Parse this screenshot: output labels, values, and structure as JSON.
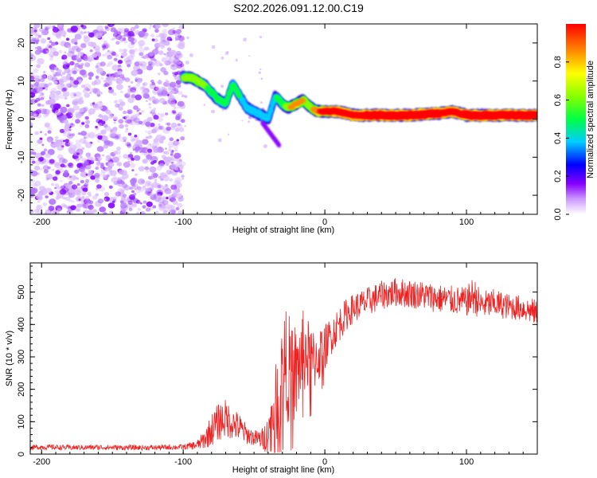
{
  "title": "S202.2026.091.12.00.C19",
  "chart_data": [
    {
      "type": "heatmap",
      "xlabel": "Height of straight line (km)",
      "ylabel": "Frequency (Hz)",
      "xlim": [
        -208,
        150
      ],
      "ylim": [
        -25,
        25
      ],
      "x_ticks": [
        -200,
        -100,
        0,
        100
      ],
      "y_ticks": [
        -20,
        -10,
        0,
        10,
        20
      ],
      "noise_region_x": [
        -208,
        -100
      ],
      "ridge": {
        "x": [
          -100,
          -95,
          -90,
          -85,
          -80,
          -75,
          -70,
          -65,
          -60,
          -55,
          -50,
          -45,
          -40,
          -35,
          -30,
          -25,
          -20,
          -15,
          -10,
          -5,
          0,
          10,
          20,
          40,
          60,
          80,
          90,
          100,
          120,
          150
        ],
        "freq": [
          11,
          11,
          10,
          9,
          7,
          5,
          4,
          9,
          6,
          3,
          2,
          1,
          0,
          6,
          4,
          3,
          4,
          5,
          3,
          2,
          2,
          2,
          1,
          1,
          1,
          1.5,
          2,
          1,
          1,
          1
        ],
        "amplitude": [
          0.45,
          0.5,
          0.5,
          0.45,
          0.4,
          0.35,
          0.35,
          0.35,
          0.35,
          0.3,
          0.3,
          0.35,
          0.3,
          0.35,
          0.4,
          0.55,
          0.6,
          0.55,
          0.5,
          0.65,
          0.8,
          0.85,
          0.85,
          0.95,
          0.95,
          0.9,
          0.85,
          0.9,
          0.9,
          0.9
        ]
      },
      "colorbar": {
        "label": "Normalized spectral amplitude",
        "ticks": [
          "0.0",
          "0.2",
          "0.4",
          "0.6",
          "0.8"
        ],
        "tick_values": [
          0.0,
          0.2,
          0.4,
          0.6,
          0.8
        ],
        "range": [
          0,
          1
        ]
      }
    },
    {
      "type": "line",
      "xlabel": "Height of straight line (km)",
      "ylabel": "SNR (10 * v/v)",
      "xlim": [
        -208,
        150
      ],
      "ylim": [
        0,
        590
      ],
      "x_ticks": [
        -200,
        -100,
        0,
        100
      ],
      "y_ticks": [
        0,
        100,
        200,
        300,
        400,
        500
      ],
      "color": "#ee2222",
      "series": [
        {
          "name": "SNR",
          "x": [
            -208,
            -200,
            -180,
            -160,
            -140,
            -120,
            -100,
            -90,
            -85,
            -80,
            -75,
            -70,
            -65,
            -60,
            -55,
            -50,
            -45,
            -40,
            -38,
            -35,
            -32,
            -30,
            -28,
            -25,
            -22,
            -20,
            -18,
            -15,
            -12,
            -10,
            -8,
            -5,
            -2,
            0,
            5,
            10,
            15,
            20,
            25,
            30,
            40,
            50,
            60,
            70,
            80,
            90,
            100,
            105,
            110,
            120,
            130,
            140,
            150
          ],
          "y": [
            20,
            22,
            20,
            21,
            20,
            20,
            22,
            28,
            45,
            75,
            100,
            110,
            95,
            80,
            60,
            50,
            45,
            60,
            100,
            150,
            200,
            250,
            280,
            260,
            260,
            240,
            280,
            320,
            300,
            280,
            290,
            300,
            320,
            330,
            370,
            400,
            430,
            450,
            460,
            470,
            490,
            500,
            495,
            490,
            480,
            475,
            470,
            490,
            460,
            465,
            455,
            450,
            435
          ],
          "noise_amplitude": [
            8,
            8,
            8,
            8,
            8,
            8,
            8,
            15,
            30,
            50,
            60,
            60,
            50,
            45,
            30,
            25,
            30,
            60,
            90,
            120,
            150,
            160,
            170,
            170,
            160,
            150,
            140,
            130,
            120,
            110,
            100,
            90,
            80,
            70,
            60,
            55,
            50,
            45,
            45,
            45,
            45,
            45,
            45,
            45,
            45,
            45,
            45,
            60,
            45,
            45,
            40,
            40,
            40
          ]
        }
      ]
    }
  ]
}
